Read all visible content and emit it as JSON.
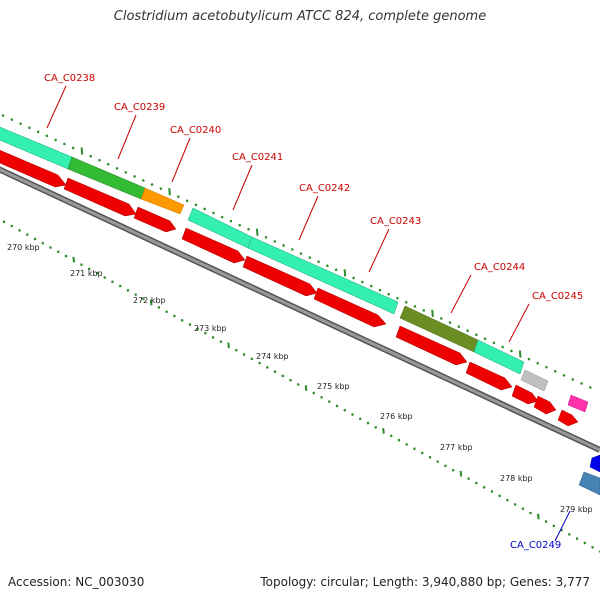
{
  "title": "Clostridium acetobutylicum ATCC 824, complete genome",
  "footer": {
    "accession": "Accession: NC_003030",
    "summary": "Topology: circular; Length: 3,940,880 bp; Genes: 3,777"
  },
  "scale_labels": [
    "270 kbp",
    "271 kbp",
    "272 kbp",
    "273 kbp",
    "274 kbp",
    "275 kbp",
    "276 kbp",
    "277 kbp",
    "278 kbp",
    "279 kbp"
  ],
  "genes": [
    {
      "label": "CA_C0238",
      "strand": "forward"
    },
    {
      "label": "CA_C0239",
      "strand": "forward"
    },
    {
      "label": "CA_C0240",
      "strand": "forward"
    },
    {
      "label": "CA_C0241",
      "strand": "forward"
    },
    {
      "label": "CA_C0242",
      "strand": "forward"
    },
    {
      "label": "CA_C0243",
      "strand": "forward"
    },
    {
      "label": "CA_C0244",
      "strand": "forward"
    },
    {
      "label": "CA_C0245",
      "strand": "forward"
    },
    {
      "label": "CA_C0249",
      "strand": "reverse"
    }
  ],
  "colors": {
    "forward_label": "#cc0000",
    "reverse_label": "#0000cc",
    "cds": "#ee0000",
    "ticks": "#2a8a2a",
    "backbone": "#888888",
    "cog_aqua": "#33f0b0",
    "cog_green": "#33bb33",
    "cog_orange": "#ff9900",
    "cog_olive": "#6b8e23",
    "cog_grey": "#c0c0c0",
    "cog_pink": "#ff33aa",
    "cog_blue": "#0000ee",
    "cog_steel": "#4682b4"
  }
}
